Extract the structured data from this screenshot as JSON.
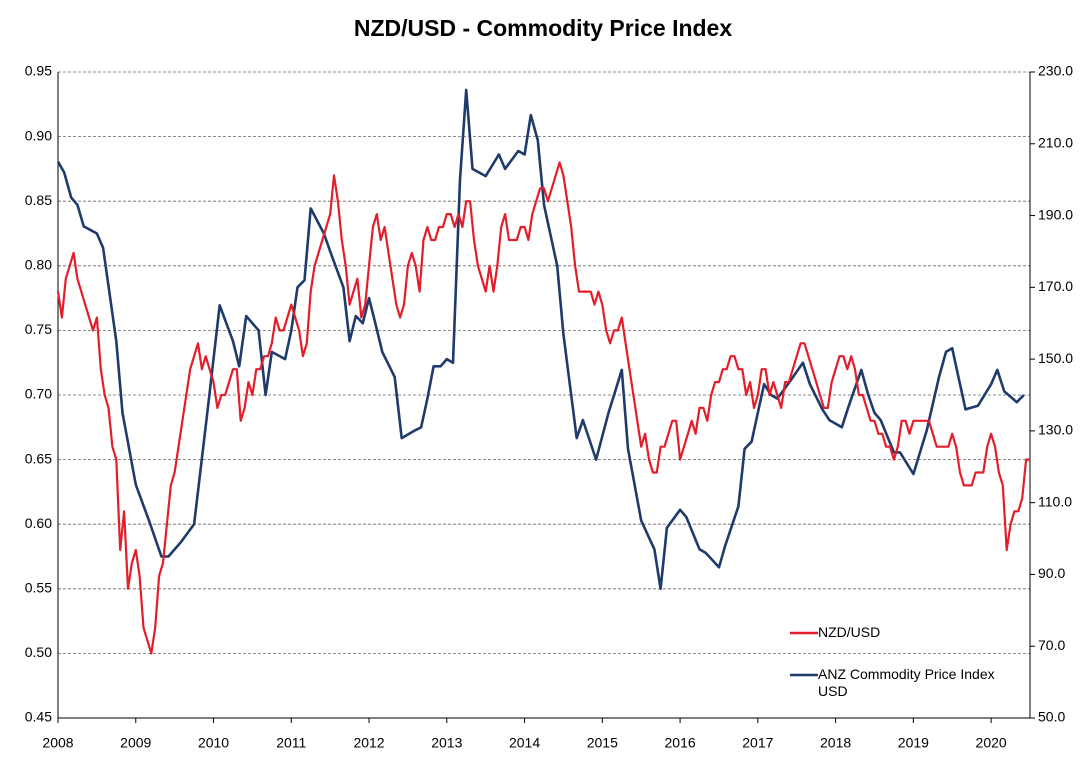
{
  "chart_data": {
    "type": "line",
    "title": "NZD/USD - Commodity Price Index",
    "xlim": [
      2008,
      2020.5
    ],
    "xticks": [
      2008,
      2009,
      2010,
      2011,
      2012,
      2013,
      2014,
      2015,
      2016,
      2017,
      2018,
      2019,
      2020
    ],
    "ylim": [
      0.45,
      0.95
    ],
    "yticks": [
      0.45,
      {
        "value": 0.5,
        "label": "0.50"
      },
      0.55,
      {
        "value": 0.6,
        "label": "0.60"
      },
      0.65,
      {
        "value": 0.7,
        "label": "0.70"
      },
      0.75,
      {
        "value": 0.8,
        "label": "0.80"
      },
      0.85,
      {
        "value": 0.9,
        "label": "0.90"
      },
      0.95
    ],
    "y2lim": [
      50,
      230
    ],
    "y2ticks": [
      {
        "value": 50,
        "label": "50.0"
      },
      {
        "value": 70,
        "label": "70.0"
      },
      {
        "value": 90,
        "label": "90.0"
      },
      {
        "value": 110,
        "label": "110.0"
      },
      {
        "value": 130,
        "label": "130.0"
      },
      {
        "value": 150,
        "label": "150.0"
      },
      {
        "value": 170,
        "label": "170.0"
      },
      {
        "value": 190,
        "label": "190.0"
      },
      {
        "value": 210,
        "label": "210.0"
      },
      {
        "value": 230,
        "label": "230.0"
      }
    ],
    "grid": true,
    "legend": "lower right",
    "series": [
      {
        "name": "NZD/USD",
        "color": "#e31e2b",
        "x": [
          2008.0,
          2008.05,
          2008.1,
          2008.15,
          2008.2,
          2008.25,
          2008.3,
          2008.35,
          2008.4,
          2008.45,
          2008.5,
          2008.55,
          2008.6,
          2008.65,
          2008.7,
          2008.75,
          2008.8,
          2008.85,
          2008.9,
          2008.95,
          2009.0,
          2009.05,
          2009.1,
          2009.15,
          2009.2,
          2009.25,
          2009.3,
          2009.35,
          2009.4,
          2009.45,
          2009.5,
          2009.55,
          2009.6,
          2009.65,
          2009.7,
          2009.75,
          2009.8,
          2009.85,
          2009.9,
          2009.95,
          2010.0,
          2010.05,
          2010.1,
          2010.15,
          2010.2,
          2010.25,
          2010.3,
          2010.35,
          2010.4,
          2010.45,
          2010.5,
          2010.55,
          2010.6,
          2010.65,
          2010.7,
          2010.75,
          2010.8,
          2010.85,
          2010.9,
          2010.95,
          2011.0,
          2011.05,
          2011.1,
          2011.15,
          2011.2,
          2011.25,
          2011.3,
          2011.35,
          2011.4,
          2011.45,
          2011.5,
          2011.55,
          2011.6,
          2011.65,
          2011.7,
          2011.75,
          2011.8,
          2011.85,
          2011.9,
          2011.95,
          2012.0,
          2012.05,
          2012.1,
          2012.15,
          2012.2,
          2012.25,
          2012.3,
          2012.35,
          2012.4,
          2012.45,
          2012.5,
          2012.55,
          2012.6,
          2012.65,
          2012.7,
          2012.75,
          2012.8,
          2012.85,
          2012.9,
          2012.95,
          2013.0,
          2013.05,
          2013.1,
          2013.15,
          2013.2,
          2013.25,
          2013.3,
          2013.35,
          2013.4,
          2013.45,
          2013.5,
          2013.55,
          2013.6,
          2013.65,
          2013.7,
          2013.75,
          2013.8,
          2013.85,
          2013.9,
          2013.95,
          2014.0,
          2014.05,
          2014.1,
          2014.15,
          2014.2,
          2014.25,
          2014.3,
          2014.35,
          2014.4,
          2014.45,
          2014.5,
          2014.55,
          2014.6,
          2014.65,
          2014.7,
          2014.75,
          2014.8,
          2014.85,
          2014.9,
          2014.95,
          2015.0,
          2015.05,
          2015.1,
          2015.15,
          2015.2,
          2015.25,
          2015.3,
          2015.35,
          2015.4,
          2015.45,
          2015.5,
          2015.55,
          2015.6,
          2015.65,
          2015.7,
          2015.75,
          2015.8,
          2015.85,
          2015.9,
          2015.95,
          2016.0,
          2016.05,
          2016.1,
          2016.15,
          2016.2,
          2016.25,
          2016.3,
          2016.35,
          2016.4,
          2016.45,
          2016.5,
          2016.55,
          2016.6,
          2016.65,
          2016.7,
          2016.75,
          2016.8,
          2016.85,
          2016.9,
          2016.95,
          2017.0,
          2017.05,
          2017.1,
          2017.15,
          2017.2,
          2017.25,
          2017.3,
          2017.35,
          2017.4,
          2017.45,
          2017.5,
          2017.55,
          2017.6,
          2017.65,
          2017.7,
          2017.75,
          2017.8,
          2017.85,
          2017.9,
          2017.95,
          2018.0,
          2018.05,
          2018.1,
          2018.15,
          2018.2,
          2018.25,
          2018.3,
          2018.35,
          2018.4,
          2018.45,
          2018.5,
          2018.55,
          2018.6,
          2018.65,
          2018.7,
          2018.75,
          2018.8,
          2018.85,
          2018.9,
          2018.95,
          2019.0,
          2019.05,
          2019.1,
          2019.15,
          2019.2,
          2019.25,
          2019.3,
          2019.35,
          2019.4,
          2019.45,
          2019.5,
          2019.55,
          2019.6,
          2019.65,
          2019.7,
          2019.75,
          2019.8,
          2019.85,
          2019.9,
          2019.95,
          2020.0,
          2020.05,
          2020.1,
          2020.15,
          2020.2,
          2020.25,
          2020.3,
          2020.35,
          2020.4,
          2020.45,
          2020.5
        ],
        "values": [
          0.78,
          0.76,
          0.79,
          0.8,
          0.81,
          0.79,
          0.78,
          0.77,
          0.76,
          0.75,
          0.76,
          0.72,
          0.7,
          0.69,
          0.66,
          0.65,
          0.58,
          0.61,
          0.55,
          0.57,
          0.58,
          0.56,
          0.52,
          0.51,
          0.5,
          0.52,
          0.56,
          0.57,
          0.6,
          0.63,
          0.64,
          0.66,
          0.68,
          0.7,
          0.72,
          0.73,
          0.74,
          0.72,
          0.73,
          0.72,
          0.71,
          0.69,
          0.7,
          0.7,
          0.71,
          0.72,
          0.72,
          0.68,
          0.69,
          0.71,
          0.7,
          0.72,
          0.72,
          0.73,
          0.73,
          0.74,
          0.76,
          0.75,
          0.75,
          0.76,
          0.77,
          0.76,
          0.75,
          0.73,
          0.74,
          0.78,
          0.8,
          0.81,
          0.82,
          0.83,
          0.84,
          0.87,
          0.85,
          0.82,
          0.8,
          0.77,
          0.78,
          0.79,
          0.76,
          0.77,
          0.8,
          0.83,
          0.84,
          0.82,
          0.83,
          0.81,
          0.79,
          0.77,
          0.76,
          0.77,
          0.8,
          0.81,
          0.8,
          0.78,
          0.82,
          0.83,
          0.82,
          0.82,
          0.83,
          0.83,
          0.84,
          0.84,
          0.83,
          0.84,
          0.83,
          0.85,
          0.85,
          0.82,
          0.8,
          0.79,
          0.78,
          0.8,
          0.78,
          0.8,
          0.83,
          0.84,
          0.82,
          0.82,
          0.82,
          0.83,
          0.83,
          0.82,
          0.84,
          0.85,
          0.86,
          0.86,
          0.85,
          0.86,
          0.87,
          0.88,
          0.87,
          0.85,
          0.83,
          0.8,
          0.78,
          0.78,
          0.78,
          0.78,
          0.77,
          0.78,
          0.77,
          0.75,
          0.74,
          0.75,
          0.75,
          0.76,
          0.74,
          0.72,
          0.7,
          0.68,
          0.66,
          0.67,
          0.65,
          0.64,
          0.64,
          0.66,
          0.66,
          0.67,
          0.68,
          0.68,
          0.65,
          0.66,
          0.67,
          0.68,
          0.67,
          0.69,
          0.69,
          0.68,
          0.7,
          0.71,
          0.71,
          0.72,
          0.72,
          0.73,
          0.73,
          0.72,
          0.72,
          0.7,
          0.71,
          0.69,
          0.7,
          0.72,
          0.72,
          0.7,
          0.71,
          0.7,
          0.69,
          0.71,
          0.71,
          0.72,
          0.73,
          0.74,
          0.74,
          0.73,
          0.72,
          0.71,
          0.7,
          0.69,
          0.69,
          0.71,
          0.72,
          0.73,
          0.73,
          0.72,
          0.73,
          0.72,
          0.7,
          0.7,
          0.69,
          0.68,
          0.68,
          0.67,
          0.67,
          0.66,
          0.66,
          0.65,
          0.66,
          0.68,
          0.68,
          0.67,
          0.68,
          0.68,
          0.68,
          0.68,
          0.68,
          0.67,
          0.66,
          0.66,
          0.66,
          0.66,
          0.67,
          0.66,
          0.64,
          0.63,
          0.63,
          0.63,
          0.64,
          0.64,
          0.64,
          0.66,
          0.67,
          0.66,
          0.64,
          0.63,
          0.58,
          0.6,
          0.61,
          0.61,
          0.62,
          0.65,
          0.65
        ]
      },
      {
        "name": "ANZ Commodity Price Index USD",
        "color": "#1f3b6b",
        "axis": "y2",
        "x": [
          2008.0,
          2008.08,
          2008.17,
          2008.25,
          2008.33,
          2008.5,
          2008.58,
          2008.75,
          2008.83,
          2009.0,
          2009.17,
          2009.33,
          2009.42,
          2009.58,
          2009.75,
          2009.92,
          2010.0,
          2010.08,
          2010.25,
          2010.33,
          2010.42,
          2010.58,
          2010.67,
          2010.75,
          2010.92,
          2011.0,
          2011.08,
          2011.17,
          2011.25,
          2011.42,
          2011.5,
          2011.67,
          2011.75,
          2011.83,
          2011.92,
          2012.0,
          2012.08,
          2012.17,
          2012.33,
          2012.42,
          2012.58,
          2012.67,
          2012.75,
          2012.83,
          2012.92,
          2013.0,
          2013.08,
          2013.17,
          2013.25,
          2013.33,
          2013.5,
          2013.67,
          2013.75,
          2013.92,
          2014.0,
          2014.08,
          2014.17,
          2014.25,
          2014.42,
          2014.5,
          2014.67,
          2014.75,
          2014.92,
          2015.08,
          2015.25,
          2015.33,
          2015.5,
          2015.67,
          2015.75,
          2015.83,
          2016.0,
          2016.08,
          2016.25,
          2016.33,
          2016.5,
          2016.58,
          2016.75,
          2016.83,
          2016.92,
          2017.0,
          2017.08,
          2017.17,
          2017.25,
          2017.42,
          2017.58,
          2017.67,
          2017.83,
          2017.92,
          2018.08,
          2018.17,
          2018.33,
          2018.42,
          2018.5,
          2018.58,
          2018.75,
          2018.83,
          2019.0,
          2019.17,
          2019.33,
          2019.42,
          2019.5,
          2019.67,
          2019.83,
          2020.0,
          2020.08,
          2020.17,
          2020.33,
          2020.42
        ],
        "values": [
          205,
          202,
          195,
          193,
          187,
          185,
          181,
          155,
          135,
          115,
          105,
          95,
          95,
          99,
          104,
          135,
          150,
          165,
          155,
          148,
          162,
          158,
          140,
          152,
          150,
          158,
          170,
          172,
          192,
          185,
          180,
          170,
          155,
          162,
          160,
          167,
          160,
          152,
          145,
          128,
          130,
          131,
          139,
          148,
          148,
          150,
          149,
          200,
          225,
          203,
          201,
          207,
          203,
          208,
          207,
          218,
          211,
          193,
          176,
          157,
          128,
          133,
          122,
          135,
          147,
          125,
          105,
          97,
          86,
          103,
          108,
          106,
          97,
          96,
          92,
          98,
          109,
          125,
          127,
          135,
          143,
          140,
          139,
          144,
          149,
          143,
          136,
          133,
          131,
          137,
          147,
          140,
          135,
          133,
          124,
          124,
          118,
          130,
          145,
          152,
          153,
          136,
          137,
          143,
          147,
          141,
          138,
          140
        ]
      }
    ]
  }
}
